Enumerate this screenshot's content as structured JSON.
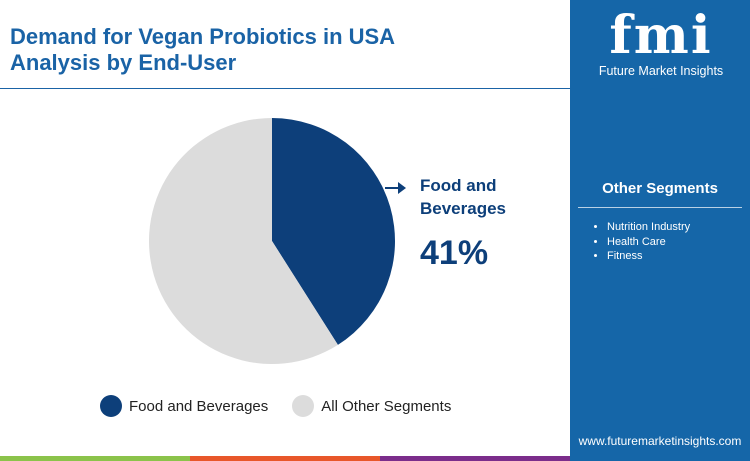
{
  "title": [
    "Demand for Vegan Probiotics in USA",
    "Analysis by End-User"
  ],
  "brand": {
    "logo_text": "fmi",
    "name": "Future Market Insights",
    "url": "www.futuremarketinsights.com",
    "panel_color": "#1566a8"
  },
  "other_segments": {
    "title": "Other Segments",
    "items": [
      "Nutrition Industry",
      "Health Care",
      "Fitness"
    ]
  },
  "chart_data": {
    "type": "pie",
    "categories": [
      "Food and Beverages",
      "All Other Segments"
    ],
    "values": [
      41,
      59
    ],
    "colors": [
      "#0d3f7a",
      "#dcdcdc"
    ],
    "start": "top",
    "direction": "clockwise",
    "annotation": {
      "label": "Food and Beverages",
      "value": "41%"
    },
    "legend": {
      "placement": "bottom",
      "entries": [
        "Food and Beverages",
        "All Other Segments"
      ]
    }
  },
  "footer_colors": [
    "#8bc34a",
    "#e8572a",
    "#7b2d8b"
  ]
}
